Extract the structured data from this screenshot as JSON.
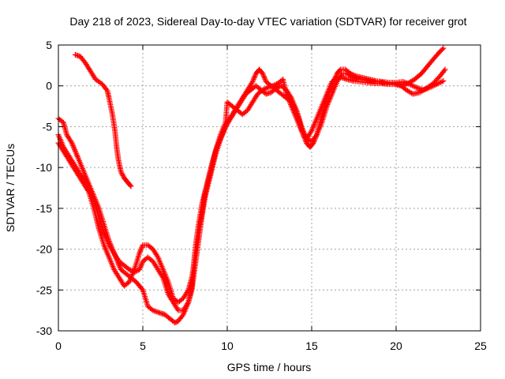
{
  "chart_data": {
    "type": "scatter",
    "title": "Day 218 of 2023, Sidereal Day-to-day VTEC variation (SDTVAR) for receiver grot",
    "xlabel": "GPS time / hours",
    "ylabel": "SDTVAR / TECUs",
    "xlim": [
      0,
      25
    ],
    "ylim": [
      -30,
      5
    ],
    "xticks": [
      0,
      5,
      10,
      15,
      20,
      25
    ],
    "yticks": [
      -30,
      -25,
      -20,
      -15,
      -10,
      -5,
      0,
      5
    ],
    "grid": true,
    "marker": "+",
    "color": "#ff0000",
    "series": [
      {
        "points": [
          [
            1.0,
            3.8
          ],
          [
            1.3,
            3.6
          ],
          [
            1.6,
            2.8
          ],
          [
            1.9,
            1.8
          ],
          [
            2.2,
            0.8
          ],
          [
            2.6,
            0.2
          ],
          [
            2.9,
            -0.6
          ],
          [
            3.0,
            -1.5
          ],
          [
            3.2,
            -3.5
          ],
          [
            3.35,
            -5.5
          ],
          [
            3.45,
            -7.5
          ],
          [
            3.55,
            -9.0
          ],
          [
            3.7,
            -10.5
          ],
          [
            3.9,
            -11.3
          ],
          [
            4.1,
            -11.8
          ],
          [
            4.3,
            -12.3
          ]
        ]
      },
      {
        "points": [
          [
            0.0,
            -4.0
          ],
          [
            0.3,
            -4.5
          ],
          [
            0.5,
            -6.0
          ],
          [
            0.8,
            -7.0
          ],
          [
            1.0,
            -8.0
          ],
          [
            1.2,
            -9.0
          ],
          [
            1.5,
            -10.5
          ],
          [
            1.8,
            -12.0
          ],
          [
            2.1,
            -13.5
          ],
          [
            2.4,
            -15.0
          ],
          [
            2.7,
            -17.0
          ],
          [
            3.0,
            -19.0
          ],
          [
            3.2,
            -20.0
          ],
          [
            3.5,
            -21.5
          ],
          [
            3.7,
            -22.5
          ],
          [
            4.0,
            -23.0
          ],
          [
            4.3,
            -23.5
          ],
          [
            4.6,
            -24.0
          ],
          [
            5.0,
            -25.0
          ],
          [
            5.3,
            -27.0
          ],
          [
            5.6,
            -27.5
          ],
          [
            6.0,
            -27.8
          ],
          [
            6.3,
            -28.0
          ],
          [
            6.6,
            -28.5
          ],
          [
            6.9,
            -29.0
          ],
          [
            7.1,
            -28.8
          ],
          [
            7.4,
            -28.0
          ],
          [
            7.7,
            -26.5
          ],
          [
            7.9,
            -24.5
          ],
          [
            8.1,
            -20.0
          ],
          [
            8.3,
            -17.0
          ],
          [
            8.5,
            -14.5
          ],
          [
            8.8,
            -12.0
          ],
          [
            9.1,
            -9.5
          ],
          [
            9.4,
            -7.5
          ],
          [
            9.7,
            -6.0
          ],
          [
            10.0,
            -4.5
          ],
          [
            10.3,
            -3.5
          ],
          [
            10.6,
            -2.5
          ],
          [
            10.9,
            -1.5
          ],
          [
            11.2,
            -0.5
          ],
          [
            11.5,
            0.5
          ],
          [
            11.7,
            1.5
          ],
          [
            11.9,
            2.0
          ],
          [
            12.1,
            1.5
          ],
          [
            12.3,
            0.5
          ],
          [
            12.6,
            0.0
          ],
          [
            12.9,
            -0.5
          ],
          [
            13.2,
            -1.0
          ],
          [
            13.5,
            -1.5
          ],
          [
            13.8,
            -2.0
          ],
          [
            14.1,
            -3.0
          ],
          [
            14.3,
            -4.5
          ],
          [
            14.5,
            -6.0
          ],
          [
            14.7,
            -7.0
          ],
          [
            14.9,
            -7.5
          ],
          [
            15.1,
            -7.0
          ],
          [
            15.3,
            -6.0
          ],
          [
            15.5,
            -4.5
          ],
          [
            15.7,
            -3.0
          ],
          [
            15.9,
            -1.5
          ],
          [
            16.1,
            -0.5
          ],
          [
            16.3,
            0.5
          ],
          [
            16.5,
            1.5
          ],
          [
            16.7,
            2.0
          ],
          [
            17.0,
            2.0
          ],
          [
            17.3,
            1.5
          ],
          [
            17.6,
            1.2
          ],
          [
            18.0,
            1.0
          ],
          [
            18.4,
            0.8
          ],
          [
            18.8,
            0.6
          ],
          [
            19.2,
            0.5
          ],
          [
            19.6,
            0.4
          ],
          [
            20.0,
            0.4
          ],
          [
            20.4,
            0.5
          ],
          [
            20.8,
            0.2
          ],
          [
            21.2,
            -0.2
          ],
          [
            21.6,
            -0.5
          ],
          [
            22.0,
            -0.2
          ],
          [
            22.4,
            0.2
          ],
          [
            22.8,
            0.6
          ]
        ]
      },
      {
        "points": [
          [
            0.0,
            -6.0
          ],
          [
            0.3,
            -7.5
          ],
          [
            0.6,
            -8.5
          ],
          [
            0.9,
            -9.5
          ],
          [
            1.2,
            -10.5
          ],
          [
            1.5,
            -11.5
          ],
          [
            1.8,
            -12.5
          ],
          [
            2.1,
            -14.0
          ],
          [
            2.4,
            -16.0
          ],
          [
            2.7,
            -18.0
          ],
          [
            3.0,
            -19.5
          ],
          [
            3.3,
            -20.5
          ],
          [
            3.6,
            -21.5
          ],
          [
            3.9,
            -22.0
          ],
          [
            4.2,
            -22.5
          ],
          [
            4.5,
            -22.8
          ],
          [
            4.8,
            -22.5
          ],
          [
            5.0,
            -21.5
          ],
          [
            5.3,
            -21.0
          ],
          [
            5.6,
            -21.5
          ],
          [
            5.9,
            -22.5
          ],
          [
            6.2,
            -23.5
          ],
          [
            6.5,
            -25.5
          ],
          [
            6.8,
            -26.5
          ],
          [
            7.1,
            -27.5
          ],
          [
            7.4,
            -27.5
          ],
          [
            7.7,
            -26.5
          ],
          [
            7.9,
            -25.0
          ],
          [
            8.1,
            -22.0
          ],
          [
            8.3,
            -19.0
          ],
          [
            8.5,
            -16.0
          ],
          [
            8.7,
            -13.5
          ],
          [
            9.0,
            -11.0
          ],
          [
            9.3,
            -8.5
          ],
          [
            9.6,
            -6.5
          ],
          [
            9.9,
            -5.0
          ],
          [
            10.2,
            -4.0
          ],
          [
            10.5,
            -3.0
          ],
          [
            10.8,
            -2.0
          ],
          [
            11.1,
            -1.0
          ],
          [
            11.4,
            -0.5
          ],
          [
            11.7,
            0.0
          ],
          [
            12.0,
            -0.5
          ],
          [
            12.3,
            -1.0
          ],
          [
            12.6,
            -0.8
          ],
          [
            12.9,
            -0.3
          ],
          [
            13.2,
            0.0
          ],
          [
            13.5,
            -0.5
          ],
          [
            13.8,
            -1.5
          ],
          [
            14.1,
            -3.0
          ],
          [
            14.4,
            -5.0
          ],
          [
            14.7,
            -6.5
          ],
          [
            15.0,
            -6.8
          ],
          [
            15.3,
            -6.0
          ],
          [
            15.6,
            -4.5
          ],
          [
            15.9,
            -2.5
          ],
          [
            16.2,
            -1.0
          ],
          [
            16.5,
            0.5
          ],
          [
            16.8,
            1.5
          ],
          [
            17.1,
            1.5
          ],
          [
            17.4,
            1.0
          ],
          [
            17.8,
            0.8
          ],
          [
            18.2,
            0.7
          ],
          [
            18.6,
            0.5
          ],
          [
            19.0,
            0.5
          ],
          [
            19.4,
            0.3
          ],
          [
            19.8,
            0.3
          ],
          [
            20.2,
            0.2
          ],
          [
            20.6,
            -0.5
          ],
          [
            21.0,
            -1.0
          ],
          [
            21.4,
            -0.8
          ],
          [
            21.8,
            -0.3
          ],
          [
            22.2,
            0.3
          ],
          [
            22.6,
            1.2
          ],
          [
            22.9,
            2.0
          ]
        ]
      },
      {
        "points": [
          [
            0.0,
            -7.0
          ],
          [
            0.3,
            -8.0
          ],
          [
            0.6,
            -9.0
          ],
          [
            0.9,
            -10.0
          ],
          [
            1.2,
            -11.0
          ],
          [
            1.5,
            -12.0
          ],
          [
            1.8,
            -13.0
          ],
          [
            2.1,
            -15.0
          ],
          [
            2.4,
            -17.5
          ],
          [
            2.7,
            -19.5
          ],
          [
            3.0,
            -21.0
          ],
          [
            3.3,
            -22.5
          ],
          [
            3.6,
            -23.5
          ],
          [
            3.9,
            -24.5
          ],
          [
            4.2,
            -24.0
          ],
          [
            4.5,
            -22.5
          ],
          [
            4.8,
            -20.5
          ],
          [
            5.0,
            -19.5
          ],
          [
            5.3,
            -19.5
          ],
          [
            5.6,
            -20.0
          ],
          [
            5.9,
            -21.0
          ],
          [
            6.2,
            -22.5
          ],
          [
            6.5,
            -24.0
          ],
          [
            6.8,
            -26.0
          ],
          [
            7.1,
            -26.5
          ],
          [
            7.4,
            -26.0
          ],
          [
            7.7,
            -25.0
          ],
          [
            7.9,
            -23.5
          ],
          [
            8.1,
            -21.0
          ],
          [
            8.3,
            -18.0
          ],
          [
            8.5,
            -15.5
          ],
          [
            8.7,
            -13.0
          ],
          [
            9.0,
            -10.5
          ],
          [
            9.3,
            -8.0
          ],
          [
            9.6,
            -6.0
          ],
          [
            9.9,
            -4.5
          ],
          [
            10.0,
            -2.0
          ],
          [
            10.3,
            -2.5
          ],
          [
            10.6,
            -3.0
          ],
          [
            10.9,
            -3.5
          ],
          [
            11.2,
            -3.0
          ],
          [
            11.5,
            -2.0
          ],
          [
            11.8,
            -1.0
          ],
          [
            12.1,
            -0.5
          ],
          [
            12.4,
            -0.2
          ],
          [
            12.7,
            0.0
          ],
          [
            13.0,
            0.3
          ],
          [
            13.3,
            0.8
          ],
          [
            13.5,
            -1.0
          ],
          [
            13.8,
            -2.5
          ],
          [
            14.1,
            -4.0
          ],
          [
            14.4,
            -5.5
          ],
          [
            14.7,
            -6.5
          ],
          [
            15.0,
            -5.5
          ],
          [
            15.3,
            -4.0
          ],
          [
            15.6,
            -2.5
          ],
          [
            15.9,
            -1.0
          ],
          [
            16.2,
            0.5
          ],
          [
            16.5,
            1.0
          ],
          [
            16.8,
            1.0
          ],
          [
            17.1,
            0.8
          ],
          [
            17.5,
            0.6
          ],
          [
            17.9,
            0.5
          ],
          [
            18.3,
            0.4
          ],
          [
            18.7,
            0.3
          ],
          [
            19.1,
            0.3
          ],
          [
            19.5,
            0.2
          ],
          [
            19.9,
            0.2
          ],
          [
            20.3,
            0.0
          ],
          [
            20.7,
            0.3
          ],
          [
            21.1,
            0.8
          ],
          [
            21.5,
            1.5
          ],
          [
            21.9,
            2.5
          ],
          [
            22.3,
            3.5
          ],
          [
            22.6,
            4.2
          ],
          [
            22.8,
            4.6
          ]
        ]
      }
    ]
  }
}
